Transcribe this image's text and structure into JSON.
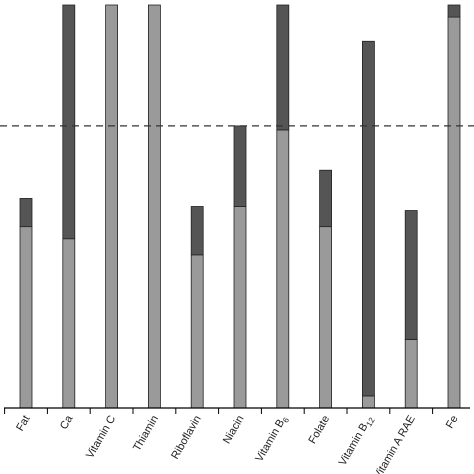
{
  "chart_data": {
    "type": "bar",
    "stacked": true,
    "categories": [
      "Fat",
      "Ca",
      "Vitamin C",
      "Thiamin",
      "Riboflavin",
      "Niacin",
      "Vitamin B6",
      "Folate",
      "Vitamin B12",
      "Vitamin A RAE",
      "Fe"
    ],
    "category_display": [
      {
        "text": "Fat",
        "sub": ""
      },
      {
        "text": "Ca",
        "sub": ""
      },
      {
        "text": "Vitamin C",
        "sub": ""
      },
      {
        "text": "Thiamin",
        "sub": ""
      },
      {
        "text": "Riboflavin",
        "sub": ""
      },
      {
        "text": "Niacin",
        "sub": ""
      },
      {
        "text": "Vitamin B",
        "sub": "6"
      },
      {
        "text": "Folate",
        "sub": ""
      },
      {
        "text": "Vitamin B",
        "sub": "12"
      },
      {
        "text": "Vitamin A RAE",
        "sub": ""
      },
      {
        "text": "Fe",
        "sub": ""
      }
    ],
    "series": [
      {
        "values": [
          0.45,
          0.42,
          1.0,
          1.0,
          0.38,
          0.5,
          0.69,
          0.45,
          0.03,
          0.17,
          0.97
        ]
      },
      {
        "values": [
          0.07,
          0.58,
          0.0,
          0.0,
          0.12,
          0.2,
          0.31,
          0.14,
          0.88,
          0.32,
          0.03
        ]
      }
    ],
    "reference_line": 0.7,
    "ylim": [
      0,
      1.0
    ],
    "colors": {
      "lower": "#9a9a9a",
      "upper": "#555555",
      "outline": "#222222",
      "axis": "#000000",
      "reference": "#333333"
    },
    "title": "",
    "xlabel": "",
    "ylabel": "",
    "grid": false,
    "legend": "none"
  }
}
